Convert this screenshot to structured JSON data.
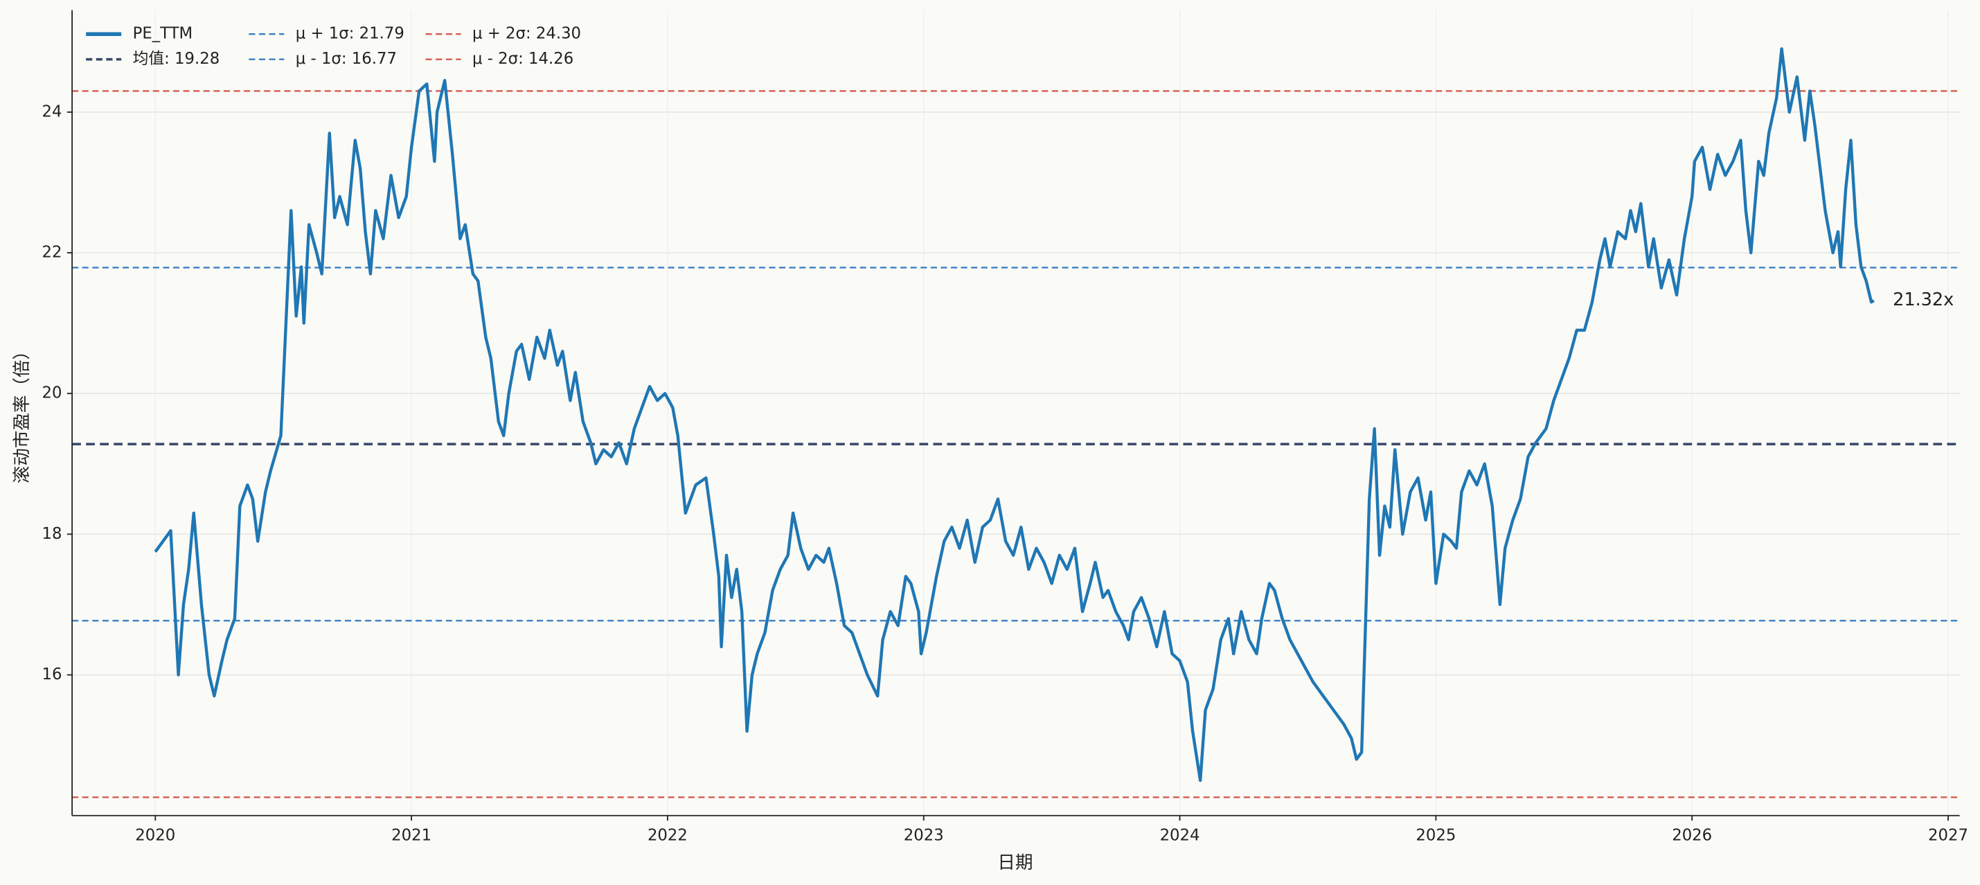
{
  "chart_data": {
    "type": "line",
    "xlabel": "日期",
    "ylabel": "滚动市盈率（倍）",
    "xlim": [
      2019.675,
      2027.045
    ],
    "xticks": [
      2020,
      2021,
      2022,
      2023,
      2024,
      2025,
      2026,
      2027
    ],
    "ylim": [
      14.0,
      25.45
    ],
    "yticks": [
      16,
      18,
      20,
      22,
      24
    ],
    "grid": true,
    "legend": "upper left",
    "x": [
      2020.0,
      2020.06,
      2020.09,
      2020.11,
      2020.13,
      2020.15,
      2020.18,
      2020.21,
      2020.23,
      2020.26,
      2020.28,
      2020.31,
      2020.33,
      2020.36,
      2020.38,
      2020.4,
      2020.43,
      2020.45,
      2020.49,
      2020.53,
      2020.55,
      2020.57,
      2020.58,
      2020.6,
      2020.63,
      2020.65,
      2020.68,
      2020.7,
      2020.72,
      2020.75,
      2020.78,
      2020.8,
      2020.82,
      2020.84,
      2020.86,
      2020.89,
      2020.92,
      2020.95,
      2020.98,
      2021.0,
      2021.03,
      2021.06,
      2021.09,
      2021.1,
      2021.13,
      2021.16,
      2021.19,
      2021.21,
      2021.24,
      2021.26,
      2021.29,
      2021.31,
      2021.34,
      2021.36,
      2021.38,
      2021.41,
      2021.43,
      2021.46,
      2021.49,
      2021.52,
      2021.54,
      2021.57,
      2021.59,
      2021.62,
      2021.64,
      2021.67,
      2021.7,
      2021.72,
      2021.75,
      2021.78,
      2021.81,
      2021.84,
      2021.87,
      2021.9,
      2021.93,
      2021.96,
      2021.99,
      2022.02,
      2022.04,
      2022.07,
      2022.11,
      2022.15,
      2022.18,
      2022.2,
      2022.21,
      2022.23,
      2022.25,
      2022.27,
      2022.29,
      2022.31,
      2022.33,
      2022.35,
      2022.38,
      2022.41,
      2022.44,
      2022.47,
      2022.49,
      2022.52,
      2022.55,
      2022.58,
      2022.61,
      2022.63,
      2022.66,
      2022.69,
      2022.72,
      2022.75,
      2022.78,
      2022.82,
      2022.84,
      2022.87,
      2022.9,
      2022.93,
      2022.95,
      2022.98,
      2022.99,
      2023.01,
      2023.03,
      2023.05,
      2023.08,
      2023.11,
      2023.14,
      2023.17,
      2023.2,
      2023.23,
      2023.26,
      2023.29,
      2023.32,
      2023.35,
      2023.38,
      2023.41,
      2023.44,
      2023.47,
      2023.5,
      2023.53,
      2023.56,
      2023.59,
      2023.62,
      2023.65,
      2023.67,
      2023.7,
      2023.72,
      2023.75,
      2023.78,
      2023.8,
      2023.82,
      2023.85,
      2023.88,
      2023.91,
      2023.94,
      2023.97,
      2024.0,
      2024.03,
      2024.05,
      2024.08,
      2024.1,
      2024.13,
      2024.16,
      2024.19,
      2024.21,
      2024.24,
      2024.27,
      2024.3,
      2024.32,
      2024.35,
      2024.37,
      2024.4,
      2024.43,
      2024.46,
      2024.49,
      2024.52,
      2024.56,
      2024.6,
      2024.64,
      2024.67,
      2024.69,
      2024.71,
      2024.73,
      2024.74,
      2024.76,
      2024.78,
      2024.8,
      2024.82,
      2024.84,
      2024.87,
      2024.9,
      2024.93,
      2024.96,
      2024.98,
      2025.0,
      2025.03,
      2025.06,
      2025.08,
      2025.1,
      2025.13,
      2025.16,
      2025.19,
      2025.22,
      2025.25,
      2025.27,
      2025.3,
      2025.33,
      2025.36,
      2025.39,
      2025.43,
      2025.46,
      2025.49,
      2025.52,
      2025.55,
      2025.58,
      2025.61,
      2025.64,
      2025.66,
      2025.68,
      2025.71,
      2025.74,
      2025.76,
      2025.78,
      2025.8,
      2025.83,
      2025.85,
      2025.88,
      2025.91,
      2025.94,
      2025.97,
      2026.0,
      2026.01,
      2026.04,
      2026.07,
      2026.1,
      2026.13,
      2026.16,
      2026.19,
      2026.21,
      2026.23,
      2026.26,
      2026.28,
      2026.3,
      2026.33,
      2026.35,
      2026.38,
      2026.41,
      2026.44,
      2026.46,
      2026.48,
      2026.5,
      2026.52,
      2026.55,
      2026.57,
      2026.58,
      2026.6,
      2026.62,
      2026.64,
      2026.66,
      2026.68,
      2026.7,
      2026.71
    ],
    "series": [
      {
        "name": "PE_TTM",
        "color": "#1f77b4",
        "values": [
          17.75,
          18.05,
          16.0,
          17.0,
          17.5,
          18.3,
          17.0,
          16.0,
          15.7,
          16.2,
          16.5,
          16.8,
          18.4,
          18.7,
          18.5,
          17.9,
          18.6,
          18.9,
          19.4,
          22.6,
          21.1,
          21.8,
          21.0,
          22.4,
          22.0,
          21.7,
          23.7,
          22.5,
          22.8,
          22.4,
          23.6,
          23.2,
          22.3,
          21.7,
          22.6,
          22.2,
          23.1,
          22.5,
          22.8,
          23.5,
          24.3,
          24.4,
          23.3,
          24.0,
          24.45,
          23.4,
          22.2,
          22.4,
          21.7,
          21.6,
          20.8,
          20.5,
          19.6,
          19.4,
          20.0,
          20.6,
          20.7,
          20.2,
          20.8,
          20.5,
          20.9,
          20.4,
          20.6,
          19.9,
          20.3,
          19.6,
          19.3,
          19.0,
          19.2,
          19.1,
          19.3,
          19.0,
          19.5,
          19.8,
          20.1,
          19.9,
          20.0,
          19.8,
          19.4,
          18.3,
          18.7,
          18.8,
          18.0,
          17.4,
          16.4,
          17.7,
          17.1,
          17.5,
          16.9,
          15.2,
          16.0,
          16.3,
          16.6,
          17.2,
          17.5,
          17.7,
          18.3,
          17.8,
          17.5,
          17.7,
          17.6,
          17.8,
          17.3,
          16.7,
          16.6,
          16.3,
          16.0,
          15.7,
          16.5,
          16.9,
          16.7,
          17.4,
          17.3,
          16.9,
          16.3,
          16.6,
          17.0,
          17.4,
          17.9,
          18.1,
          17.8,
          18.2,
          17.6,
          18.1,
          18.2,
          18.5,
          17.9,
          17.7,
          18.1,
          17.5,
          17.8,
          17.6,
          17.3,
          17.7,
          17.5,
          17.8,
          16.9,
          17.3,
          17.6,
          17.1,
          17.2,
          16.9,
          16.7,
          16.5,
          16.9,
          17.1,
          16.8,
          16.4,
          16.9,
          16.3,
          16.2,
          15.9,
          15.2,
          14.5,
          15.5,
          15.8,
          16.5,
          16.8,
          16.3,
          16.9,
          16.5,
          16.3,
          16.8,
          17.3,
          17.2,
          16.8,
          16.5,
          16.3,
          16.1,
          15.9,
          15.7,
          15.5,
          15.3,
          15.1,
          14.8,
          14.9,
          17.3,
          18.5,
          19.5,
          17.7,
          18.4,
          18.1,
          19.2,
          18.0,
          18.6,
          18.8,
          18.2,
          18.6,
          17.3,
          18.0,
          17.9,
          17.8,
          18.6,
          18.9,
          18.7,
          19.0,
          18.4,
          17.0,
          17.8,
          18.2,
          18.5,
          19.1,
          19.3,
          19.5,
          19.9,
          20.2,
          20.5,
          20.9,
          20.9,
          21.3,
          21.9,
          22.2,
          21.8,
          22.3,
          22.2,
          22.6,
          22.3,
          22.7,
          21.8,
          22.2,
          21.5,
          21.9,
          21.4,
          22.2,
          22.8,
          23.3,
          23.5,
          22.9,
          23.4,
          23.1,
          23.3,
          23.6,
          22.6,
          22.0,
          23.3,
          23.1,
          23.7,
          24.2,
          24.9,
          24.0,
          24.5,
          23.6,
          24.3,
          23.8,
          23.2,
          22.6,
          22.0,
          22.3,
          21.8,
          22.9,
          23.6,
          22.4,
          21.8,
          21.6,
          21.3,
          21.32
        ]
      }
    ],
    "reference_lines": [
      {
        "name": "均值: 19.28",
        "value": 19.28,
        "color": "#3b4a6b"
      },
      {
        "name": "μ + 1σ: 21.79",
        "value": 21.79,
        "color": "#3a7fc4"
      },
      {
        "name": "μ - 1σ: 16.77",
        "value": 16.77,
        "color": "#3a7fc4"
      },
      {
        "name": "μ + 2σ: 24.30",
        "value": 24.3,
        "color": "#d65a4f"
      },
      {
        "name": "μ - 2σ: 14.26",
        "value": 14.26,
        "color": "#d65a4f"
      }
    ],
    "annotations": [
      {
        "text": "21.32x"
      }
    ]
  }
}
